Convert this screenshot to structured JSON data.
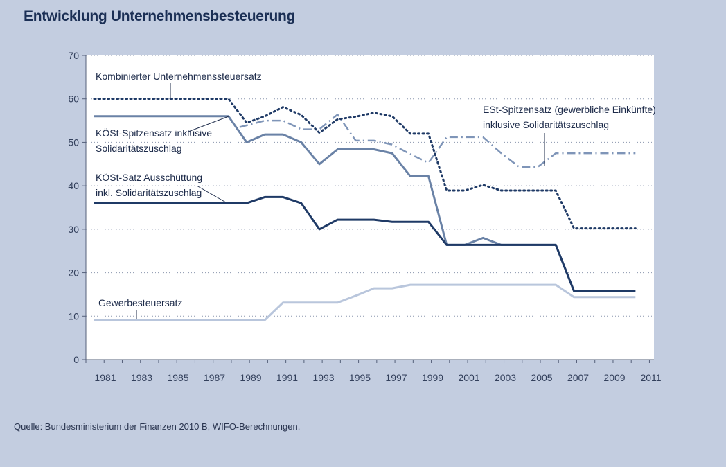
{
  "title": "Entwicklung Unternehmensbesteuerung",
  "source": "Quelle: Bundesministerium der Finanzen 2010 B, WIFO-Berechnungen.",
  "colors": {
    "background": "#c3cde0",
    "plot_area": "#ffffff",
    "gridline": "#8a95ad",
    "kombiniert": "#1f3a66",
    "koest_spitzensatz": "#6a82a6",
    "koest_ausschuettung": "#1f3a66",
    "est_spitzensatz": "#7f95b8",
    "gewerbesteuer": "#b9c6dc"
  },
  "chart_data": {
    "type": "line",
    "title": "Entwicklung Unternehmensbesteuerung",
    "xlabel": "",
    "ylabel": "",
    "xlim": [
      1980.5,
      2011
    ],
    "ylim": [
      0,
      70
    ],
    "x_ticks": [
      1981,
      1983,
      1985,
      1987,
      1989,
      1991,
      1993,
      1995,
      1997,
      1999,
      2001,
      2003,
      2005,
      2007,
      2009,
      2011
    ],
    "y_ticks": [
      0,
      10,
      20,
      30,
      40,
      50,
      60,
      70
    ],
    "grid": "horizontal-dotted",
    "legend": "inline-annotations",
    "series": [
      {
        "name": "Kombinierter Unternehmenssteuersatz",
        "style": "dotted",
        "x": [
          1981,
          1982,
          1983,
          1984,
          1985,
          1986,
          1987,
          1988,
          1989,
          1990,
          1991,
          1992,
          1993,
          1994,
          1995,
          1996,
          1997,
          1998,
          1999,
          2000,
          2001,
          2002,
          2003,
          2004,
          2005,
          2006,
          2007,
          2008,
          2009,
          2010
        ],
        "values": [
          60,
          60,
          60,
          60,
          60,
          60,
          60,
          60,
          54.5,
          56,
          58.1,
          56.3,
          52.2,
          55.3,
          55.9,
          56.8,
          56,
          52,
          52,
          38.9,
          38.9,
          40.2,
          38.9,
          38.9,
          38.9,
          38.9,
          30.2,
          30.2,
          30.2,
          30.2
        ]
      },
      {
        "name": "KÖSt-Spitzensatz inklusive Solidaritätszuschlag",
        "style": "solid",
        "x": [
          1981,
          1982,
          1983,
          1984,
          1985,
          1986,
          1987,
          1988,
          1989,
          1990,
          1991,
          1992,
          1993,
          1994,
          1995,
          1996,
          1997,
          1998,
          1999,
          2000,
          2001,
          2002,
          2003,
          2004,
          2005,
          2006,
          2007,
          2008,
          2009,
          2010
        ],
        "values": [
          56,
          56,
          56,
          56,
          56,
          56,
          56,
          56,
          50,
          51.8,
          51.8,
          50,
          45,
          48.4,
          48.4,
          48.4,
          47.5,
          42.2,
          42.2,
          26.4,
          26.4,
          28,
          26.4,
          26.4,
          26.4,
          26.4,
          15.8,
          15.8,
          15.8,
          15.8
        ]
      },
      {
        "name": "KÖSt-Satz Ausschüttung inkl. Solidaritätszuschlag",
        "style": "solid",
        "x": [
          1981,
          1982,
          1983,
          1984,
          1985,
          1986,
          1987,
          1988,
          1989,
          1990,
          1991,
          1992,
          1993,
          1994,
          1995,
          1996,
          1997,
          1998,
          1999,
          2000,
          2001,
          2002,
          2003,
          2004,
          2005,
          2006,
          2007,
          2008,
          2009,
          2010
        ],
        "values": [
          36,
          36,
          36,
          36,
          36,
          36,
          36,
          36,
          36,
          37.4,
          37.4,
          36,
          30,
          32.2,
          32.2,
          32.2,
          31.7,
          31.7,
          31.7,
          26.4,
          26.4,
          26.4,
          26.4,
          26.4,
          26.4,
          26.4,
          15.8,
          15.8,
          15.8,
          15.8
        ]
      },
      {
        "name": "ESt-Spitzensatz (gewerbliche Einkünfte) inklusive Solidaritätszuschlag",
        "style": "dash-dot",
        "x": [
          1989,
          1990,
          1991,
          1992,
          1993,
          1994,
          1995,
          1996,
          1997,
          1998,
          1999,
          2000,
          2001,
          2002,
          2003,
          2004,
          2005,
          2006,
          2007,
          2008,
          2009,
          2010
        ],
        "values": [
          53.5,
          55,
          55,
          53,
          53,
          56.4,
          50.4,
          50.4,
          49.5,
          47.3,
          45.3,
          51.2,
          51.2,
          51.2,
          47.5,
          44.3,
          44.3,
          47.5,
          47.5,
          47.5,
          47.5,
          47.5
        ]
      },
      {
        "name": "Gewerbesteuersatz",
        "style": "solid",
        "x": [
          1981,
          1982,
          1983,
          1984,
          1985,
          1986,
          1987,
          1988,
          1989,
          1990,
          1991,
          1992,
          1993,
          1994,
          1995,
          1996,
          1997,
          1998,
          1999,
          2000,
          2001,
          2002,
          2003,
          2004,
          2005,
          2006,
          2007,
          2008,
          2009,
          2010
        ],
        "values": [
          9.1,
          9.1,
          9.1,
          9.1,
          9.1,
          9.1,
          9.1,
          9.1,
          9.1,
          9.1,
          13.1,
          13.1,
          13.1,
          13.1,
          14.7,
          16.4,
          16.4,
          17.2,
          17.2,
          17.2,
          17.2,
          17.2,
          17.2,
          17.2,
          17.2,
          17.2,
          14.4,
          14.4,
          14.4,
          14.4
        ]
      }
    ],
    "annotations": [
      {
        "lines": [
          "Kombinierter Unternehmenssteuersatz"
        ],
        "points_to": [
          1988,
          60
        ]
      },
      {
        "lines": [
          "KÖSt-Spitzensatz inklusive",
          "Solidaritätszuschlag"
        ],
        "points_to": [
          1987,
          56
        ]
      },
      {
        "lines": [
          "KÖSt-Satz Ausschüttung",
          "inkl. Solidaritätszuschlag"
        ],
        "points_to": [
          1988,
          36
        ]
      },
      {
        "lines": [
          "ESt-Spitzensatz (gewerbliche Einkünfte)",
          "inklusive Solidaritätszuschlag"
        ],
        "points_to": [
          2005,
          44.3
        ]
      },
      {
        "lines": [
          "Gewerbesteuersatz"
        ],
        "points_to": [
          1983,
          9.1
        ]
      }
    ]
  }
}
